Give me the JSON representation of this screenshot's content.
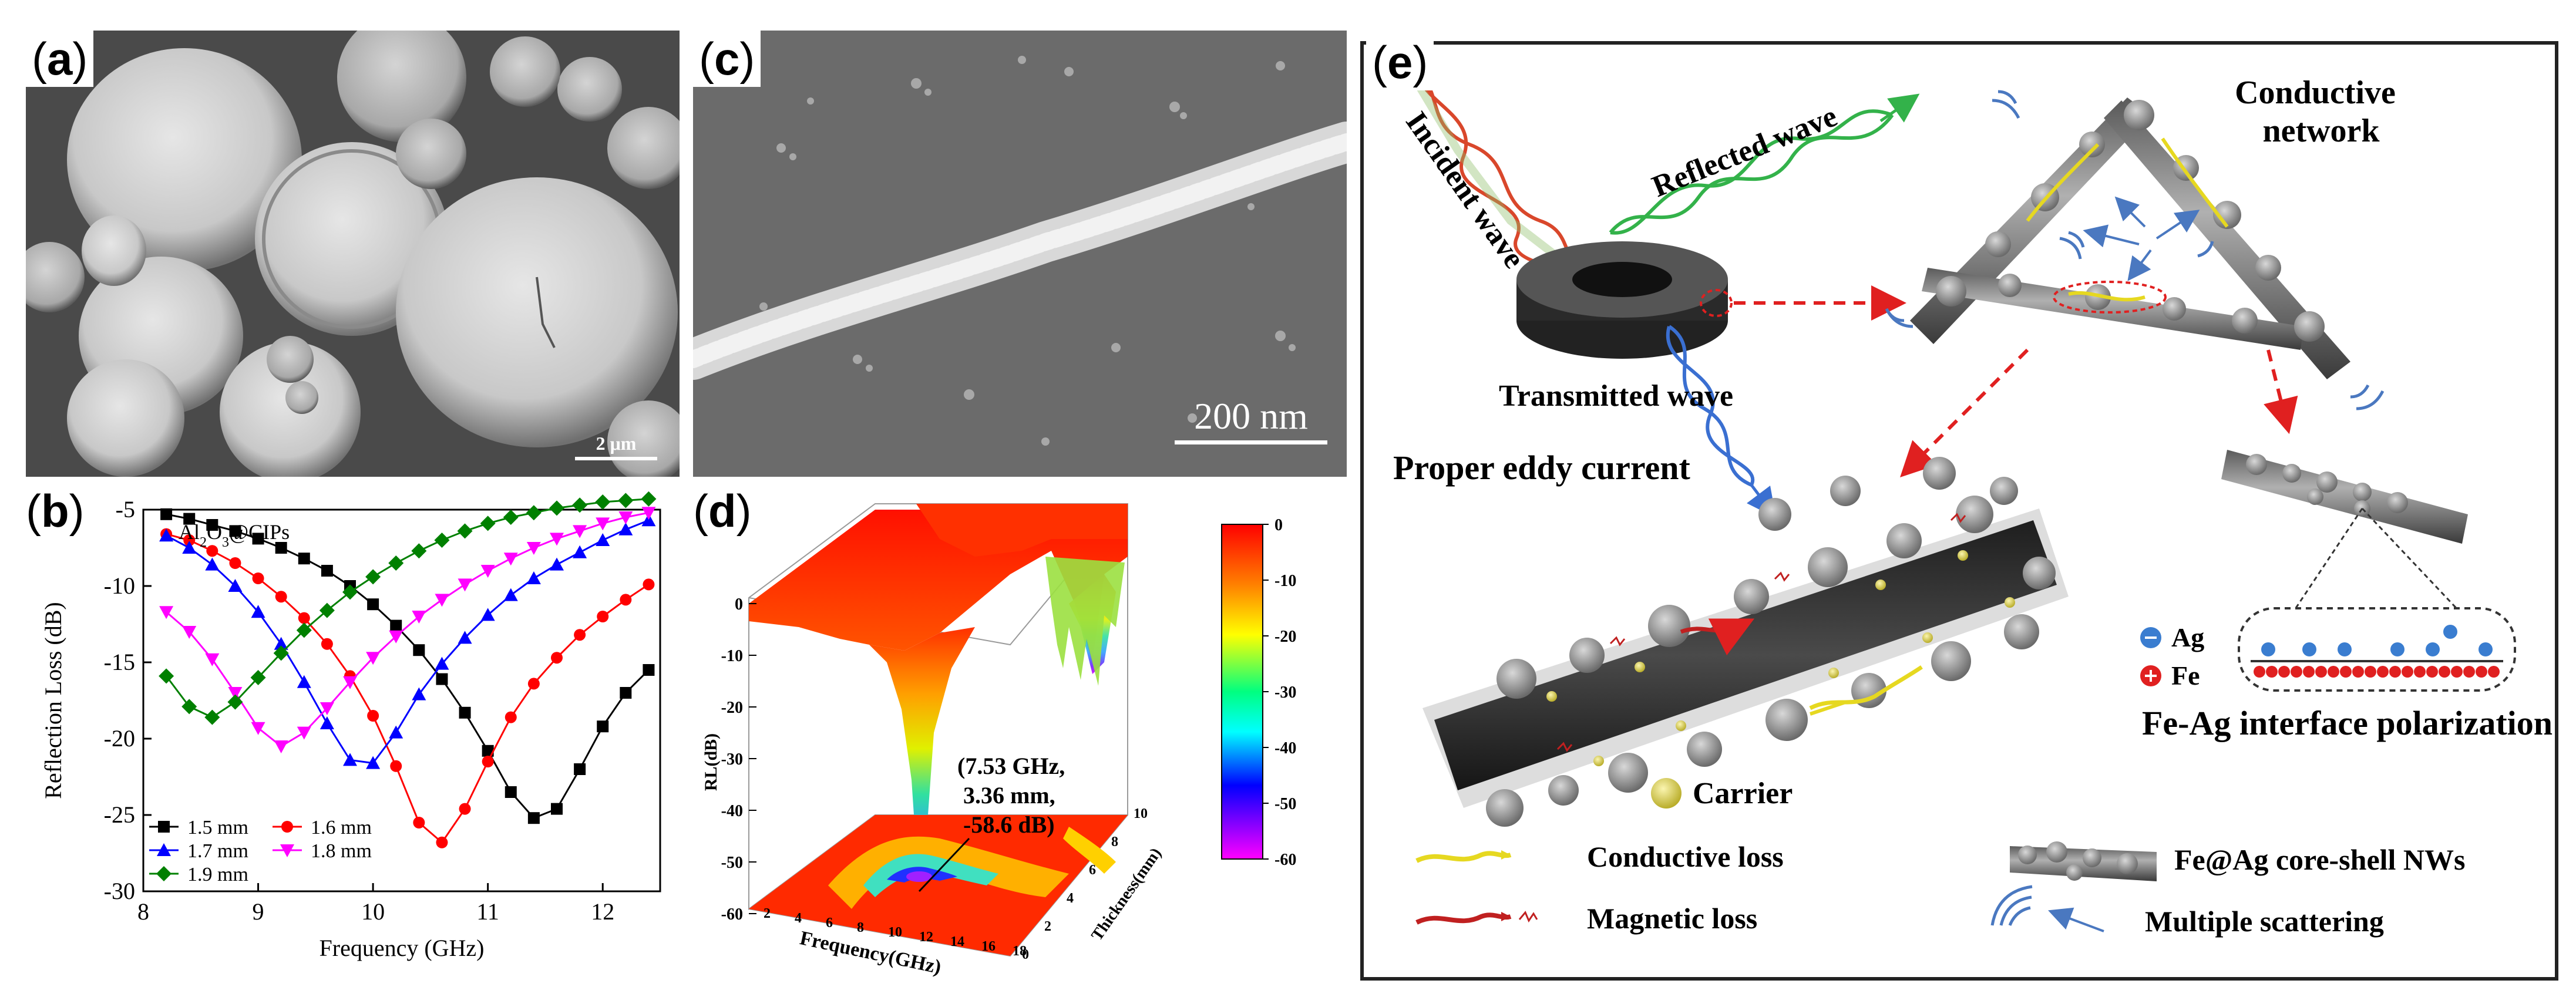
{
  "panels": {
    "a": {
      "label_open": "(",
      "label_letter": "a",
      "label_close": ")",
      "scale_bar": "2 μm"
    },
    "b": {
      "label_open": "(",
      "label_letter": "b",
      "label_close": ")"
    },
    "c": {
      "label_open": "(",
      "label_letter": "c",
      "label_close": ")",
      "scale_bar": "200 nm"
    },
    "d": {
      "label_open": "(",
      "label_letter": "d",
      "label_close": ")",
      "annotation": [
        "(7.53 GHz,",
        "3.36 mm,",
        "-58.6 dB)"
      ],
      "zlabel": "RL(dB)",
      "xlabel": "Frequency(GHz)",
      "ylabel": "Thickness(mm)",
      "z_ticks": [
        "0",
        "-10",
        "-20",
        "-30",
        "-40",
        "-50",
        "-60"
      ],
      "x_ticks": [
        "2",
        "4",
        "6",
        "8",
        "10",
        "12",
        "14",
        "16",
        "18"
      ],
      "y_ticks": [
        "0",
        "2",
        "4",
        "6",
        "8",
        "10"
      ],
      "colorbar_ticks": [
        "0",
        "-10",
        "-20",
        "-30",
        "-40",
        "-50",
        "-60"
      ]
    },
    "e": {
      "label_open": "(",
      "label_letter": "e",
      "label_close": ")",
      "incident_wave": "Incident wave",
      "reflected_wave": "Reflected wave",
      "transmitted_wave": "Transmitted wave",
      "conductive_network": [
        "Conductive",
        "network"
      ],
      "proper_eddy_current": "Proper eddy current",
      "ag": "Ag",
      "fe": "Fe",
      "interface": "Fe-Ag interface polarization",
      "carrier": "Carrier",
      "legend": {
        "conductive_loss": "Conductive loss",
        "magnetic_loss": "Magnetic loss",
        "core_shell": "Fe@Ag core-shell NWs",
        "multiple_scattering": "Multiple scattering"
      },
      "colors": {
        "incident": "#d9472b",
        "reflected": "#33b24a",
        "transmitted": "#3a6fd1",
        "arrow": "#e02020",
        "carrier": "#e8d84a"
      }
    }
  },
  "chart_data": [
    {
      "type": "line",
      "title": "Al2O3@CIPs",
      "xlabel": "Frequency (GHz)",
      "ylabel": "Reflection Loss (dB)",
      "xlim": [
        8,
        12.5
      ],
      "ylim": [
        -30,
        -5
      ],
      "x_ticks": [
        8,
        9,
        10,
        11,
        12
      ],
      "y_ticks": [
        -5,
        -10,
        -15,
        -20,
        -25,
        -30
      ],
      "legend_position": "bottom-left",
      "x": [
        8.2,
        8.4,
        8.6,
        8.8,
        9.0,
        9.2,
        9.4,
        9.6,
        9.8,
        10.0,
        10.2,
        10.4,
        10.6,
        10.8,
        11.0,
        11.2,
        11.4,
        11.6,
        11.8,
        12.0,
        12.2,
        12.4
      ],
      "series": [
        {
          "name": "1.5 mm",
          "marker": "square",
          "color": "#000000",
          "values": [
            -5.3,
            -5.6,
            -6.0,
            -6.4,
            -6.9,
            -7.5,
            -8.2,
            -9.0,
            -10.0,
            -11.2,
            -12.6,
            -14.2,
            -16.1,
            -18.3,
            -20.8,
            -23.5,
            -25.2,
            -24.6,
            -22.0,
            -19.2,
            -17.0,
            -15.5
          ]
        },
        {
          "name": "1.6 mm",
          "marker": "circle",
          "color": "#ff0000",
          "values": [
            -6.6,
            -7.0,
            -7.7,
            -8.5,
            -9.5,
            -10.7,
            -12.1,
            -13.8,
            -15.9,
            -18.5,
            -21.8,
            -25.5,
            -26.8,
            -24.6,
            -21.5,
            -18.6,
            -16.4,
            -14.7,
            -13.2,
            -12.0,
            -10.9,
            -9.9
          ]
        },
        {
          "name": "1.7 mm",
          "marker": "triangle",
          "color": "#0000ff",
          "values": [
            -6.7,
            -7.5,
            -8.6,
            -10.0,
            -11.7,
            -13.8,
            -16.3,
            -19.0,
            -21.4,
            -21.6,
            -19.6,
            -17.1,
            -15.1,
            -13.4,
            -11.9,
            -10.6,
            -9.5,
            -8.6,
            -7.8,
            -7.0,
            -6.3,
            -5.7
          ]
        },
        {
          "name": "1.8 mm",
          "marker": "triangle-down",
          "color": "#ff00ff",
          "values": [
            -11.7,
            -13.0,
            -14.8,
            -17.0,
            -19.3,
            -20.5,
            -19.6,
            -18.0,
            -16.3,
            -14.7,
            -13.3,
            -12.0,
            -10.9,
            -9.9,
            -9.0,
            -8.2,
            -7.5,
            -6.9,
            -6.4,
            -5.9,
            -5.5,
            -5.2
          ]
        },
        {
          "name": "1.9 mm",
          "marker": "diamond",
          "color": "#008000",
          "values": [
            -15.9,
            -17.9,
            -18.6,
            -17.6,
            -16.0,
            -14.4,
            -12.9,
            -11.6,
            -10.4,
            -9.4,
            -8.5,
            -7.7,
            -7.0,
            -6.4,
            -5.9,
            -5.5,
            -5.2,
            -4.9,
            -4.7,
            -4.5,
            -4.4,
            -4.3
          ]
        }
      ]
    },
    {
      "type": "surface",
      "xlabel": "Frequency(GHz)",
      "ylabel": "Thickness(mm)",
      "zlabel": "RL(dB)",
      "xlim": [
        2,
        18
      ],
      "ylim": [
        0,
        10
      ],
      "zlim": [
        -60,
        0
      ],
      "colorbar": {
        "min": -60,
        "max": 0
      },
      "annotated_minimum": {
        "frequency_ghz": 7.53,
        "thickness_mm": 3.36,
        "rl_db": -58.6
      }
    }
  ]
}
